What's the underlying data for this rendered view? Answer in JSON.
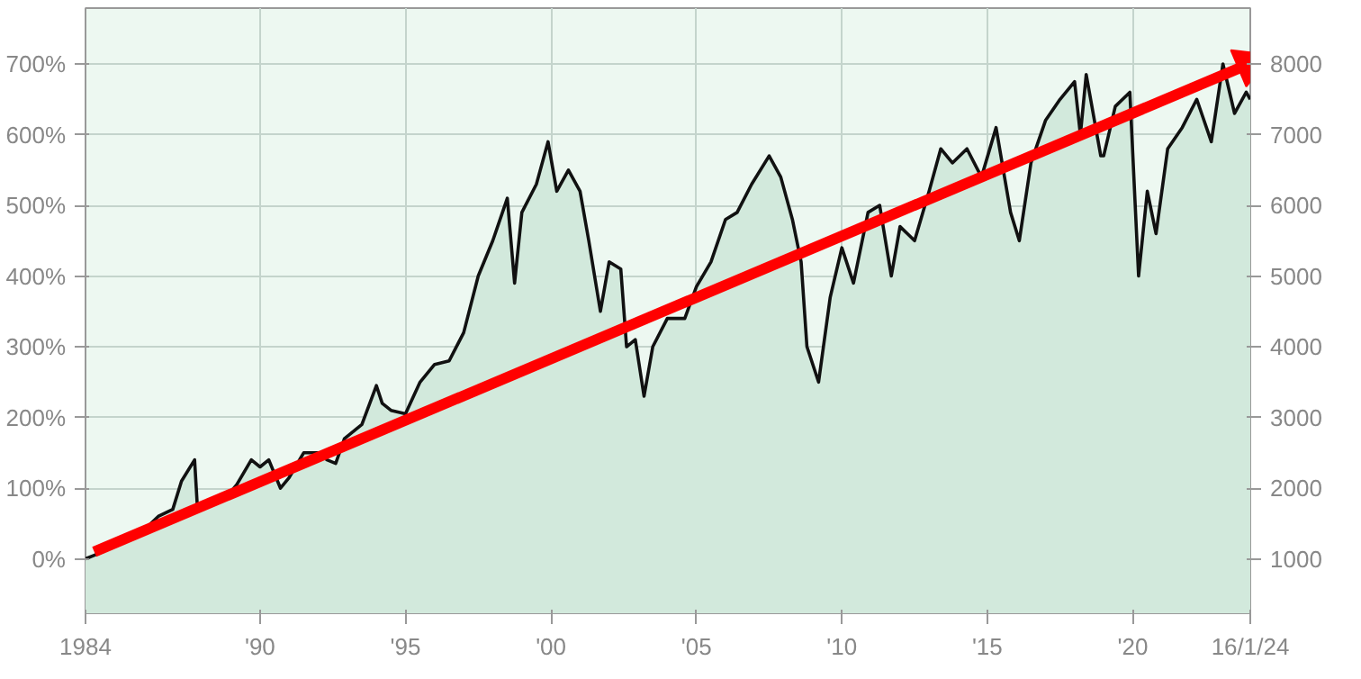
{
  "chart_data": {
    "type": "area",
    "xlim": [
      1984.0,
      2024.04
    ],
    "xticks": [
      {
        "value": 1984,
        "label": "1984"
      },
      {
        "value": 1990,
        "label": "'90"
      },
      {
        "value": 1995,
        "label": "'95"
      },
      {
        "value": 2000,
        "label": "'00"
      },
      {
        "value": 2005,
        "label": "'05"
      },
      {
        "value": 2010,
        "label": "'10"
      },
      {
        "value": 2015,
        "label": "'15"
      },
      {
        "value": 2020,
        "label": "'20"
      },
      {
        "value": 2024.04,
        "label": "16/1/24"
      }
    ],
    "ylim": [
      -77,
      779
    ],
    "yticks": [
      {
        "value": 0,
        "label": "0%"
      },
      {
        "value": 100,
        "label": "100%"
      },
      {
        "value": 200,
        "label": "200%"
      },
      {
        "value": 300,
        "label": "300%"
      },
      {
        "value": 400,
        "label": "400%"
      },
      {
        "value": 500,
        "label": "500%"
      },
      {
        "value": 600,
        "label": "600%"
      },
      {
        "value": 700,
        "label": "700%"
      }
    ],
    "y2lim": [
      230,
      8790
    ],
    "y2ticks": [
      1000,
      2000,
      3000,
      4000,
      5000,
      6000,
      7000,
      8000
    ],
    "grid": true,
    "series": [
      {
        "axis": "y2",
        "color": "#d2e9dc",
        "x": [
          1984.0,
          1984.3,
          1984.6,
          1985.0,
          1985.5,
          1986.0,
          1986.5,
          1987.0,
          1987.3,
          1987.75,
          1987.85,
          1988.2,
          1988.8,
          1989.2,
          1989.7,
          1990.0,
          1990.3,
          1990.7,
          1991.0,
          1991.5,
          1992.0,
          1992.3,
          1992.6,
          1992.9,
          1993.5,
          1994.0,
          1994.2,
          1994.5,
          1995.0,
          1995.5,
          1996.0,
          1996.5,
          1997.0,
          1997.5,
          1998.0,
          1998.5,
          1998.75,
          1999.0,
          1999.5,
          1999.9,
          2000.2,
          2000.6,
          2001.0,
          2001.3,
          2001.7,
          2002.0,
          2002.4,
          2002.6,
          2002.9,
          2003.2,
          2003.5,
          2004.0,
          2004.6,
          2005.0,
          2005.5,
          2006.0,
          2006.4,
          2006.9,
          2007.5,
          2007.9,
          2008.3,
          2008.6,
          2008.8,
          2009.2,
          2009.6,
          2010.0,
          2010.4,
          2010.9,
          2011.3,
          2011.7,
          2012.0,
          2012.5,
          2013.0,
          2013.4,
          2013.8,
          2014.3,
          2014.8,
          2015.3,
          2015.8,
          2016.1,
          2016.5,
          2017.0,
          2017.5,
          2018.0,
          2018.2,
          2018.4,
          2018.9,
          2019.0,
          2019.4,
          2019.9,
          2020.2,
          2020.5,
          2020.8,
          2021.2,
          2021.7,
          2022.2,
          2022.7,
          2023.1,
          2023.5,
          2023.9,
          2024.04
        ],
        "values": [
          1000,
          1050,
          1100,
          1250,
          1300,
          1400,
          1600,
          1700,
          2100,
          2400,
          1700,
          1800,
          1850,
          2050,
          2400,
          2300,
          2400,
          2000,
          2150,
          2500,
          2500,
          2400,
          2350,
          2700,
          2900,
          3450,
          3200,
          3100,
          3050,
          3500,
          3750,
          3800,
          4200,
          5000,
          5500,
          6100,
          4900,
          5900,
          6300,
          6900,
          6200,
          6500,
          6200,
          5500,
          4500,
          5200,
          5100,
          4000,
          4100,
          3300,
          4000,
          4400,
          4400,
          4850,
          5200,
          5800,
          5900,
          6300,
          6700,
          6400,
          5800,
          5200,
          4000,
          3500,
          4700,
          5400,
          4900,
          5900,
          6000,
          5000,
          5700,
          5500,
          6200,
          6800,
          6600,
          6800,
          6400,
          7100,
          5900,
          5500,
          6600,
          7200,
          7500,
          7750,
          7000,
          7850,
          6700,
          6700,
          7400,
          7600,
          5000,
          6200,
          5600,
          6800,
          7100,
          7500,
          6900,
          8000,
          7300,
          7600,
          7500
        ]
      },
      {
        "type": "line",
        "axis": "y2",
        "color": "#ff0000",
        "x": [
          1984.3,
          2024.0
        ],
        "values": [
          1100,
          8000
        ]
      }
    ]
  }
}
